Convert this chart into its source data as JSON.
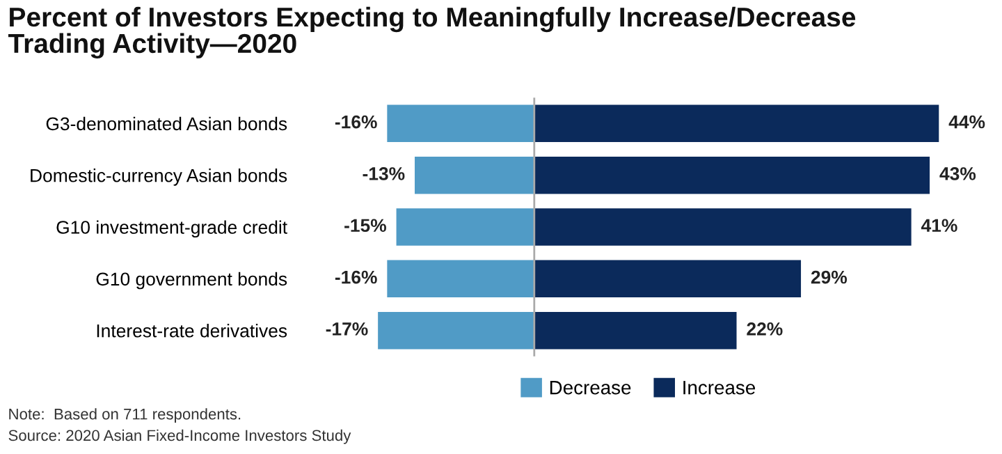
{
  "chart_data": {
    "type": "bar",
    "orientation": "horizontal",
    "title": "Percent of Investors Expecting to Meaningfully Increase/Decrease\nTrading Activity—2020",
    "categories": [
      "G3-denominated Asian bonds",
      "Domestic-currency Asian bonds",
      "G10 investment-grade credit",
      "G10 government bonds",
      "Interest-rate derivatives"
    ],
    "series": [
      {
        "name": "Decrease",
        "color": "#509bc6",
        "values": [
          -16,
          -13,
          -15,
          -16,
          -17
        ],
        "value_labels": [
          "-16%",
          "-13%",
          "-15%",
          "-16%",
          "-17%"
        ]
      },
      {
        "name": "Increase",
        "color": "#0b2a5b",
        "values": [
          44,
          43,
          41,
          29,
          22
        ],
        "value_labels": [
          "44%",
          "43%",
          "41%",
          "29%",
          "22%"
        ]
      }
    ],
    "ref_lines": [
      {
        "axis": "x",
        "value": 0,
        "color": "#aaaaaa"
      }
    ],
    "legend": "bottom",
    "stacked": true,
    "tick_labels": "y",
    "annotations": [
      "Note:  Based on 711 respondents.",
      "Source: 2020 Asian Fixed-Income Investors Study"
    ]
  }
}
